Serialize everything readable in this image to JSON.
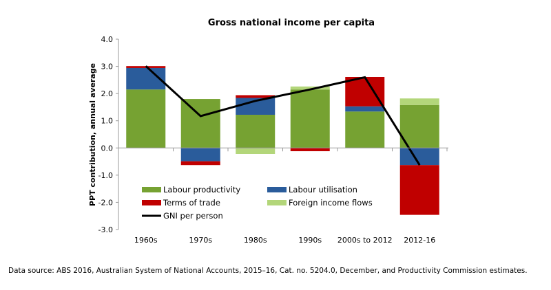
{
  "chart_data": {
    "type": "bar",
    "stacked": true,
    "title": "Gross national income per capita",
    "ylabel": "PPT contribution, annual average",
    "xlabel": "",
    "ylim": [
      -3,
      4
    ],
    "yticks": [
      "4.0",
      "3.0",
      "2.0",
      "1.0",
      "0.0",
      "-1.0",
      "-2.0",
      "-3.0"
    ],
    "categories": [
      "1960s",
      "1970s",
      "1980s",
      "1990s",
      "2000s to 2012",
      "2012-16"
    ],
    "series": [
      {
        "name": "Labour productivity",
        "color": "#76A232",
        "values": [
          2.15,
          1.8,
          1.22,
          2.15,
          1.34,
          1.58
        ]
      },
      {
        "name": "Labour utilisation",
        "color": "#2A5C9B",
        "values": [
          0.79,
          -0.49,
          0.62,
          0,
          0.19,
          -0.63
        ]
      },
      {
        "name": "Terms of trade",
        "color": "#C00000",
        "values": [
          0.07,
          -0.14,
          0.1,
          -0.12,
          1.08,
          -1.83
        ]
      },
      {
        "name": "Foreign income flows",
        "color": "#B3D67A",
        "values": [
          0,
          0,
          -0.22,
          0.11,
          0,
          0.24
        ]
      },
      {
        "name": "GNI per person",
        "type": "line",
        "color": "#000000",
        "values": [
          3.01,
          1.17,
          1.73,
          2.15,
          2.6,
          -0.63
        ]
      }
    ],
    "legend": "inside-bottom-left",
    "grid": false
  },
  "source": "Data source: ABS 2016, Australian System of National Accounts, 2015–16, Cat. no. 5204.0, December, and Productivity Commission estimates."
}
